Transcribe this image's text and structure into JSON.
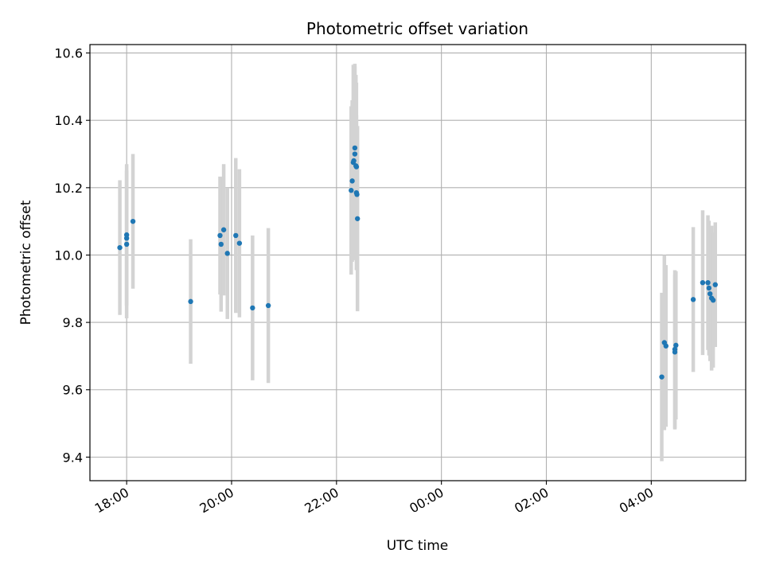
{
  "chart_data": {
    "type": "scatter",
    "title": "Photometric offset variation",
    "xlabel": "UTC time",
    "ylabel": "Photometric offset",
    "x_unit": "hours since 18:00 UTC",
    "xlim": [
      -0.7,
      11.8
    ],
    "ylim": [
      9.33,
      10.625
    ],
    "grid": true,
    "x_ticks": [
      {
        "value": 0,
        "label": "18:00"
      },
      {
        "value": 2,
        "label": "20:00"
      },
      {
        "value": 4,
        "label": "22:00"
      },
      {
        "value": 6,
        "label": "00:00"
      },
      {
        "value": 8,
        "label": "02:00"
      },
      {
        "value": 10,
        "label": "04:00"
      }
    ],
    "y_ticks": [
      {
        "value": 9.4,
        "label": "9.4"
      },
      {
        "value": 9.6,
        "label": "9.6"
      },
      {
        "value": 9.8,
        "label": "9.8"
      },
      {
        "value": 10.0,
        "label": "10.0"
      },
      {
        "value": 10.2,
        "label": "10.2"
      },
      {
        "value": 10.4,
        "label": "10.4"
      },
      {
        "value": 10.6,
        "label": "10.6"
      }
    ],
    "colors": {
      "point": "#1f77b4",
      "errorbar": "#d3d3d3",
      "grid": "#b0b0b0",
      "axis": "#000000"
    },
    "series": [
      {
        "name": "offset",
        "points": [
          {
            "x": -0.13,
            "y": 10.022,
            "err": 0.2
          },
          {
            "x": 0.0,
            "y": 10.05,
            "err": 0.2
          },
          {
            "x": 0.0,
            "y": 10.06,
            "err": 0.21
          },
          {
            "x": 0.0,
            "y": 10.032,
            "err": 0.22
          },
          {
            "x": 0.12,
            "y": 10.1,
            "err": 0.2
          },
          {
            "x": 1.22,
            "y": 9.862,
            "err": 0.185
          },
          {
            "x": 1.78,
            "y": 10.058,
            "err": 0.175
          },
          {
            "x": 1.8,
            "y": 10.032,
            "err": 0.2
          },
          {
            "x": 1.85,
            "y": 10.075,
            "err": 0.195
          },
          {
            "x": 1.92,
            "y": 10.005,
            "err": 0.195
          },
          {
            "x": 2.08,
            "y": 10.058,
            "err": 0.23
          },
          {
            "x": 2.15,
            "y": 10.035,
            "err": 0.22
          },
          {
            "x": 2.4,
            "y": 9.843,
            "err": 0.215
          },
          {
            "x": 2.7,
            "y": 9.85,
            "err": 0.23
          },
          {
            "x": 4.28,
            "y": 10.192,
            "err": 0.25
          },
          {
            "x": 4.3,
            "y": 10.22,
            "err": 0.24
          },
          {
            "x": 4.32,
            "y": 10.275,
            "err": 0.29
          },
          {
            "x": 4.33,
            "y": 10.28,
            "err": 0.28
          },
          {
            "x": 4.35,
            "y": 10.318,
            "err": 0.25
          },
          {
            "x": 4.35,
            "y": 10.3,
            "err": 0.26
          },
          {
            "x": 4.37,
            "y": 10.265,
            "err": 0.27
          },
          {
            "x": 4.38,
            "y": 10.262,
            "err": 0.25
          },
          {
            "x": 4.38,
            "y": 10.185,
            "err": 0.23
          },
          {
            "x": 4.39,
            "y": 10.18,
            "err": 0.2
          },
          {
            "x": 4.4,
            "y": 10.108,
            "err": 0.275
          },
          {
            "x": 10.2,
            "y": 9.638,
            "err": 0.25
          },
          {
            "x": 10.25,
            "y": 9.74,
            "err": 0.26
          },
          {
            "x": 10.28,
            "y": 9.73,
            "err": 0.24
          },
          {
            "x": 10.45,
            "y": 9.72,
            "err": 0.235
          },
          {
            "x": 10.45,
            "y": 9.712,
            "err": 0.23
          },
          {
            "x": 10.47,
            "y": 9.732,
            "err": 0.22
          },
          {
            "x": 10.8,
            "y": 9.868,
            "err": 0.215
          },
          {
            "x": 10.98,
            "y": 9.918,
            "err": 0.215
          },
          {
            "x": 11.08,
            "y": 9.918,
            "err": 0.2
          },
          {
            "x": 11.1,
            "y": 9.902,
            "err": 0.2
          },
          {
            "x": 11.12,
            "y": 9.885,
            "err": 0.2
          },
          {
            "x": 11.15,
            "y": 9.872,
            "err": 0.215
          },
          {
            "x": 11.18,
            "y": 9.866,
            "err": 0.2
          },
          {
            "x": 11.22,
            "y": 9.912,
            "err": 0.185
          }
        ]
      }
    ]
  }
}
